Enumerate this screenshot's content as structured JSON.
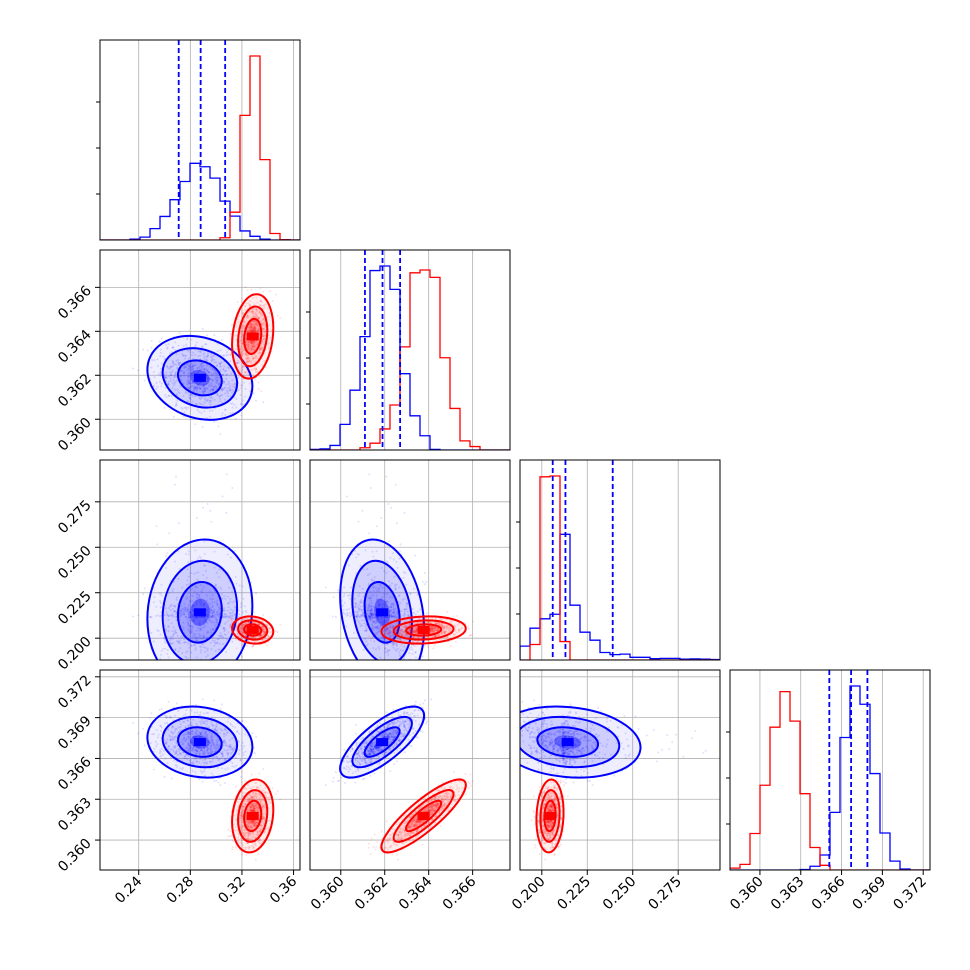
{
  "chart_data": {
    "type": "corner",
    "parameters": [
      {
        "ticks": [
          0.24,
          0.28,
          0.32,
          0.36
        ],
        "tick_labels": [
          "0.24",
          "0.28",
          "0.32",
          "0.36"
        ],
        "range": [
          0.21,
          0.365
        ]
      },
      {
        "ticks": [
          0.36,
          0.362,
          0.364,
          0.366
        ],
        "tick_labels": [
          "0.360",
          "0.362",
          "0.364",
          "0.366"
        ],
        "range": [
          0.3586,
          0.3677
        ]
      },
      {
        "ticks": [
          0.2,
          0.225,
          0.25,
          0.275
        ],
        "tick_labels": [
          "0.200",
          "0.225",
          "0.250",
          "0.275"
        ],
        "range": [
          0.188,
          0.298
        ]
      },
      {
        "ticks": [
          0.36,
          0.363,
          0.366,
          0.369,
          0.372
        ],
        "tick_labels": [
          "0.360",
          "0.363",
          "0.366",
          "0.369",
          "0.372"
        ],
        "range": [
          0.3578,
          0.3725
        ]
      }
    ],
    "series": [
      {
        "color": "#0000ff",
        "mean": [
          0.288,
          0.3619,
          0.2115,
          0.3672
        ],
        "spread": [
          0.0175,
          0.0008,
          0.0112,
          0.0011
        ],
        "quantile_lines": [
          [
            0.271,
            0.288,
            0.307
          ],
          [
            0.3611,
            0.3619,
            0.3627
          ],
          [
            0.206,
            0.213,
            0.239
          ],
          [
            0.3651,
            0.3667,
            0.3679
          ]
        ]
      },
      {
        "color": "#ff0000",
        "mean": [
          0.3285,
          0.3638,
          0.2045,
          0.3618
        ],
        "spread": [
          0.0065,
          0.0008,
          0.0032,
          0.0011
        ],
        "quantile_lines": []
      }
    ]
  }
}
